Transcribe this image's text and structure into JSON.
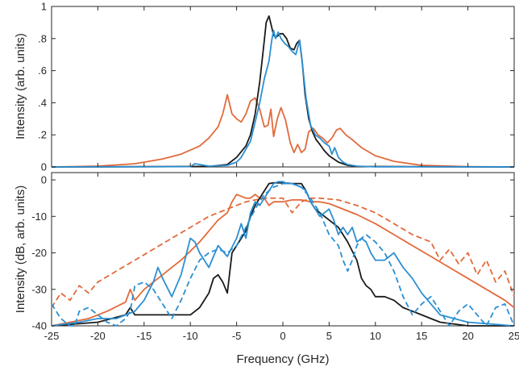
{
  "chart_data": [
    {
      "type": "line",
      "panel": "top",
      "xlabel": "",
      "ylabel": "Intensity (arb. units)",
      "xlim": [
        -25,
        25
      ],
      "ylim": [
        0,
        1
      ],
      "xticks": [
        -25,
        -20,
        -15,
        -10,
        -5,
        0,
        5,
        10,
        15,
        20,
        25
      ],
      "yticks": [
        0,
        0.2,
        0.4,
        0.6,
        0.8,
        1
      ],
      "ytick_labels": [
        "0",
        ".2",
        ".4",
        ".6",
        ".8",
        "1"
      ],
      "grid": false,
      "series": [
        {
          "color": "#e26a3b",
          "dash": "solid",
          "x": [
            -25,
            -20,
            -16,
            -13,
            -11,
            -9,
            -8,
            -7,
            -6.5,
            -6,
            -5.5,
            -5,
            -4.5,
            -4,
            -3.5,
            -3,
            -2.5,
            -2,
            -1.6,
            -1.3,
            -1,
            -0.6,
            -0.2,
            0.3,
            0.8,
            1.2,
            1.6,
            2,
            2.4,
            2.8,
            3.3,
            3.8,
            4.3,
            4.8,
            5.3,
            5.8,
            6.2,
            6.8,
            7.5,
            8.5,
            10,
            12,
            15,
            20,
            25
          ],
          "y": [
            0.0,
            0.005,
            0.02,
            0.05,
            0.08,
            0.13,
            0.18,
            0.25,
            0.33,
            0.45,
            0.33,
            0.3,
            0.28,
            0.33,
            0.41,
            0.43,
            0.36,
            0.25,
            0.26,
            0.36,
            0.19,
            0.3,
            0.37,
            0.29,
            0.15,
            0.09,
            0.14,
            0.09,
            0.11,
            0.22,
            0.24,
            0.2,
            0.18,
            0.15,
            0.18,
            0.23,
            0.24,
            0.2,
            0.17,
            0.12,
            0.07,
            0.035,
            0.01,
            0.002,
            0.0
          ]
        },
        {
          "color": "#1a1a1a",
          "dash": "solid",
          "x": [
            -25,
            -8,
            -6,
            -5,
            -4,
            -3.5,
            -3,
            -2.5,
            -2,
            -1.8,
            -1.5,
            -1.2,
            -1,
            -0.7,
            -0.3,
            0,
            0.4,
            0.8,
            1.2,
            1.5,
            1.8,
            2.1,
            2.4,
            2.8,
            3.2,
            3.6,
            4,
            4.5,
            5,
            6,
            7,
            8,
            25
          ],
          "y": [
            0,
            0.003,
            0.015,
            0.06,
            0.13,
            0.2,
            0.33,
            0.53,
            0.79,
            0.9,
            0.94,
            0.87,
            0.82,
            0.81,
            0.83,
            0.83,
            0.8,
            0.74,
            0.73,
            0.77,
            0.79,
            0.65,
            0.45,
            0.3,
            0.22,
            0.17,
            0.14,
            0.1,
            0.07,
            0.03,
            0.01,
            0.003,
            0
          ]
        },
        {
          "color": "#2b8fd2",
          "dash": "solid",
          "x": [
            -25,
            -10,
            -9.5,
            -9,
            -8,
            -6,
            -5,
            -4.5,
            -4,
            -3.5,
            -3,
            -2.5,
            -2,
            -1.5,
            -1.2,
            -1,
            -0.8,
            -0.5,
            -0.2,
            0.2,
            0.6,
            1,
            1.4,
            1.8,
            2.1,
            2.5,
            3,
            3.5,
            4,
            4.5,
            5,
            5.3,
            5.6,
            6,
            6.5,
            7,
            8,
            10,
            25
          ],
          "y": [
            0,
            0.002,
            0.02,
            0.015,
            0.005,
            0.01,
            0.03,
            0.06,
            0.11,
            0.16,
            0.28,
            0.4,
            0.55,
            0.66,
            0.79,
            0.85,
            0.8,
            0.84,
            0.8,
            0.77,
            0.75,
            0.72,
            0.7,
            0.79,
            0.65,
            0.43,
            0.26,
            0.2,
            0.18,
            0.15,
            0.13,
            0.08,
            0.12,
            0.06,
            0.03,
            0.015,
            0.005,
            0.001,
            0
          ]
        }
      ]
    },
    {
      "type": "line",
      "panel": "bottom",
      "xlabel": "Frequency  (GHz)",
      "ylabel": "Intensity (dB, arb. units)",
      "xlim": [
        -25,
        25
      ],
      "ylim": [
        -40,
        2
      ],
      "xticks": [
        -25,
        -20,
        -15,
        -10,
        -5,
        0,
        5,
        10,
        15,
        20,
        25
      ],
      "xtick_labels": [
        "-25",
        "-20",
        "-15",
        "-10",
        "-5",
        "0",
        "5",
        "10",
        "15",
        "20",
        "25"
      ],
      "yticks": [
        -40,
        -30,
        -20,
        -10,
        0
      ],
      "ytick_labels": [
        "-40",
        "-30",
        "-20",
        "-10",
        "0"
      ],
      "grid": false,
      "series": [
        {
          "color": "#e26a3b",
          "dash": "solid",
          "x": [
            -25,
            -23,
            -21,
            -19,
            -17,
            -16.5,
            -16,
            -15,
            -14,
            -13,
            -12,
            -11,
            -10,
            -9,
            -8,
            -7,
            -6,
            -5.5,
            -5,
            -4,
            -3.5,
            -3,
            -2.5,
            -2,
            -1.5,
            -1,
            0,
            1,
            2,
            3,
            4,
            5,
            6,
            8,
            10,
            12,
            14,
            16,
            18,
            20,
            22,
            24,
            25
          ],
          "y": [
            -40,
            -39,
            -38,
            -36,
            -33.5,
            -30,
            -33,
            -30,
            -28,
            -26,
            -24,
            -22,
            -19.5,
            -17,
            -14,
            -11,
            -9,
            -6,
            -4,
            -5,
            -5,
            -4,
            -5,
            -5,
            -7,
            -6,
            -6,
            -5.5,
            -5.5,
            -6,
            -6,
            -6.5,
            -7.5,
            -9.5,
            -12,
            -15,
            -18,
            -21,
            -24,
            -27,
            -30,
            -33,
            -35
          ]
        },
        {
          "color": "#e26a3b",
          "dash": "dashed",
          "x": [
            -25,
            -24,
            -23,
            -22,
            -21,
            -20,
            -18,
            -16,
            -14,
            -12,
            -10,
            -8,
            -6,
            -4,
            -2,
            0,
            1,
            2,
            3,
            4,
            6,
            8,
            10,
            12,
            14,
            16,
            17,
            18,
            19,
            20,
            21,
            22,
            23,
            24,
            25
          ],
          "y": [
            -35,
            -31,
            -33,
            -29,
            -31,
            -28,
            -25,
            -22,
            -19,
            -16,
            -13,
            -10,
            -8,
            -6,
            -5,
            -5,
            -9,
            -6,
            -5,
            -5,
            -5.5,
            -7,
            -9,
            -12,
            -15,
            -17,
            -22,
            -19,
            -23,
            -20,
            -26,
            -22,
            -28,
            -25,
            -32
          ]
        },
        {
          "color": "#1a1a1a",
          "dash": "solid",
          "x": [
            -25,
            -20,
            -17,
            -16.5,
            -16,
            -14,
            -12,
            -11,
            -10,
            -9,
            -8,
            -7.5,
            -7,
            -6.5,
            -6,
            -5.5,
            -5,
            -4,
            -3.5,
            -3,
            -2.5,
            -2,
            -1.5,
            -1,
            0,
            1,
            2,
            2.5,
            3,
            3.5,
            4,
            5,
            6,
            7,
            8,
            8.5,
            9,
            9.5,
            10,
            11,
            12,
            13,
            14,
            15,
            16,
            17,
            20,
            25
          ],
          "y": [
            -40,
            -39,
            -37,
            -35,
            -37,
            -37,
            -37,
            -37,
            -37,
            -35,
            -31,
            -27,
            -26,
            -28,
            -31,
            -20,
            -18,
            -14,
            -10,
            -7,
            -5,
            -3,
            -1,
            -0.8,
            -0.8,
            -1,
            -1,
            -3,
            -6,
            -8,
            -9,
            -11,
            -13,
            -17,
            -22,
            -27,
            -29,
            -30,
            -32,
            -32,
            -33,
            -35,
            -36,
            -37,
            -38,
            -39,
            -40,
            -40
          ]
        },
        {
          "color": "#2b8fd2",
          "dash": "solid",
          "x": [
            -25,
            -22,
            -20,
            -18,
            -16,
            -15,
            -14,
            -13.5,
            -13,
            -12,
            -11,
            -10.5,
            -10,
            -9.5,
            -9,
            -8,
            -7,
            -6,
            -5,
            -4.5,
            -4,
            -3.5,
            -3,
            -2.5,
            -2,
            -1.5,
            -1,
            -0.5,
            0,
            0.5,
            1,
            2,
            2.5,
            3,
            3.5,
            4,
            5,
            5.5,
            6,
            6.5,
            7,
            7.5,
            8,
            8.5,
            9,
            9.5,
            10,
            11,
            12,
            13,
            14,
            15,
            16,
            17,
            20,
            25
          ],
          "y": [
            -40,
            -39,
            -38,
            -38,
            -36,
            -33,
            -28,
            -24,
            -27,
            -32,
            -26,
            -21,
            -16,
            -17,
            -20,
            -24,
            -18,
            -21,
            -16,
            -12,
            -16,
            -9,
            -6,
            -7,
            -5,
            -3,
            -1,
            -0.5,
            -0.5,
            -1,
            -1,
            -2,
            -3,
            -6,
            -8,
            -10,
            -8,
            -11,
            -15,
            -13,
            -15,
            -13,
            -17,
            -16,
            -17,
            -20,
            -22,
            -22,
            -20,
            -24,
            -27,
            -31,
            -34,
            -37,
            -39,
            -40
          ]
        },
        {
          "color": "#2b8fd2",
          "dash": "dashed",
          "x": [
            -25,
            -24,
            -23,
            -22.5,
            -22,
            -21,
            -20,
            -19,
            -18,
            -17,
            -16.5,
            -16,
            -15,
            -14,
            -13,
            -12,
            -11,
            -10,
            -9,
            -8,
            -7,
            -6,
            -5,
            -4,
            -3,
            -2,
            -1,
            0,
            1,
            2,
            3,
            4,
            5,
            6,
            6.5,
            7,
            7.5,
            8,
            8.5,
            9,
            10,
            11,
            12,
            13,
            14,
            15,
            16,
            17,
            18,
            19,
            20,
            21,
            22,
            23,
            24,
            25
          ],
          "y": [
            -34,
            -38,
            -40,
            -40,
            -36,
            -35,
            -37,
            -39,
            -40,
            -38,
            -36,
            -29,
            -28,
            -30,
            -34,
            -38,
            -33,
            -27,
            -22,
            -20,
            -19,
            -20,
            -18,
            -13,
            -8,
            -4,
            -2,
            -1,
            -1,
            -2,
            -5,
            -9,
            -15,
            -18,
            -22,
            -25,
            -22,
            -18,
            -16,
            -15,
            -17,
            -20,
            -25,
            -32,
            -37,
            -34,
            -32,
            -36,
            -40,
            -36,
            -34,
            -37,
            -40,
            -35,
            -34,
            -40
          ]
        }
      ]
    }
  ]
}
